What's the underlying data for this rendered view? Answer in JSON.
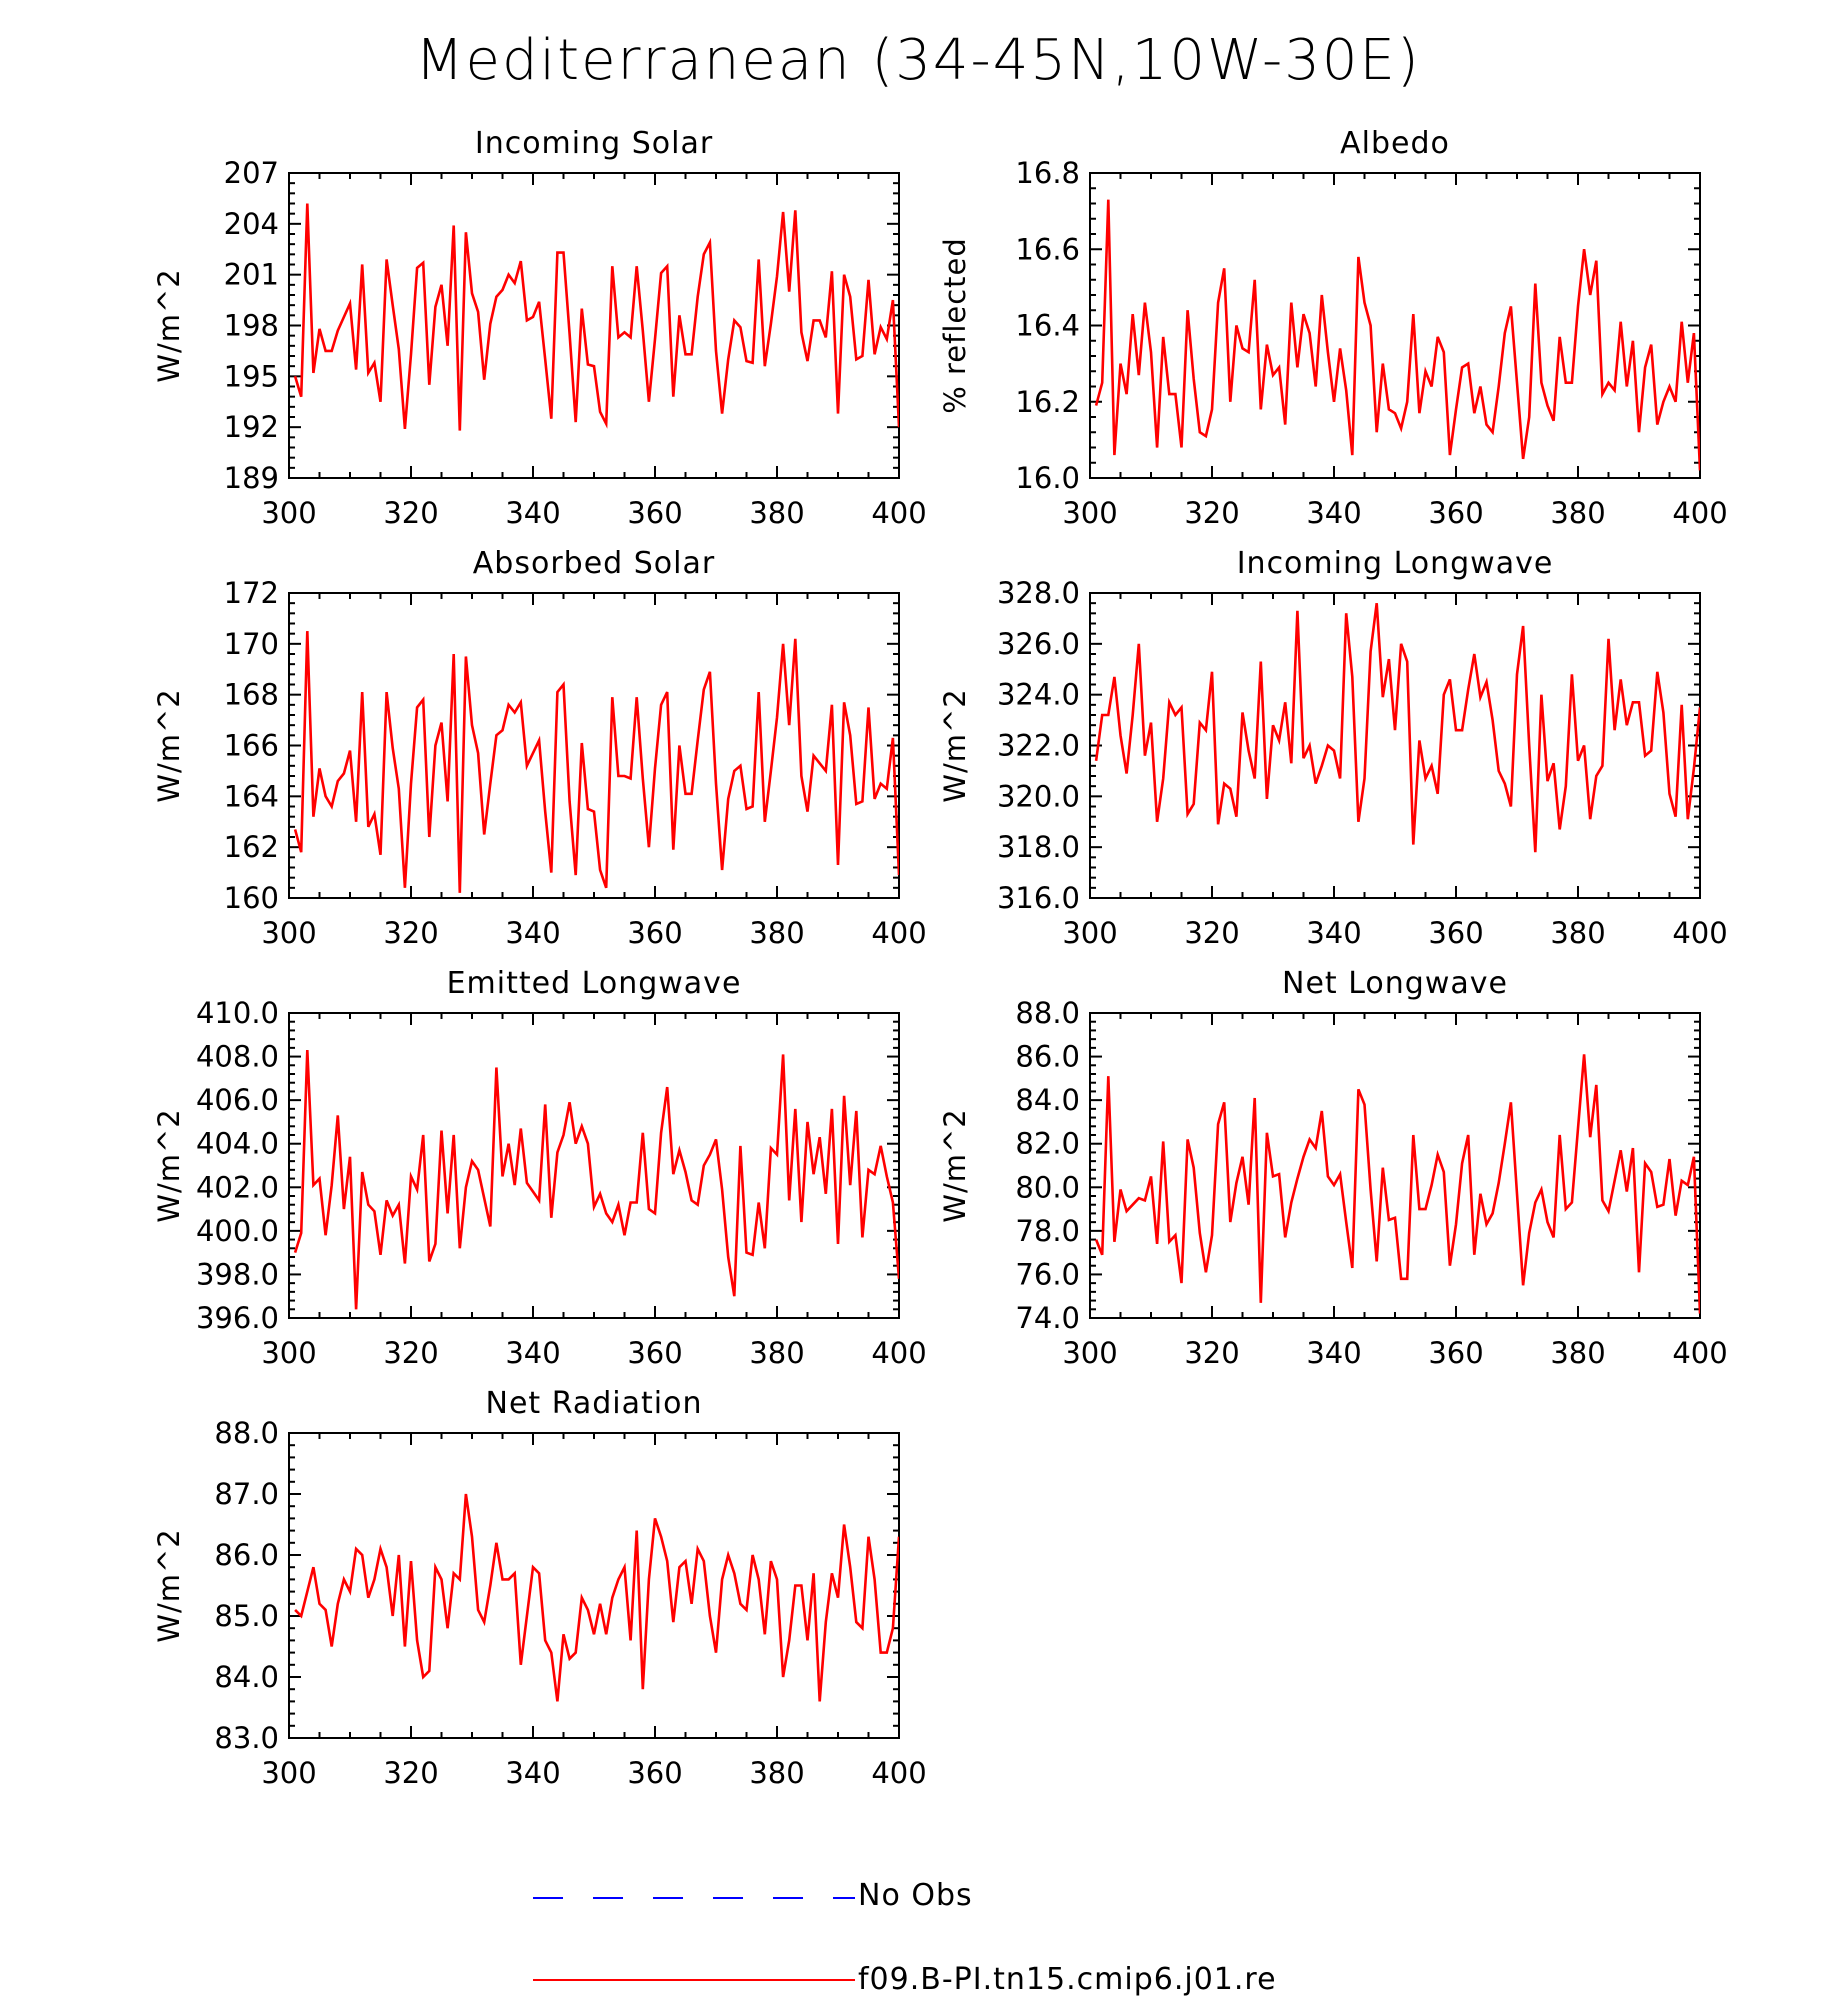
{
  "main_title": "Mediterranean (34-45N,10W-30E)",
  "colors": {
    "model_line": "#ff0000",
    "obs_line": "#0000ff",
    "axis": "#000000"
  },
  "legend": [
    {
      "label": "No Obs",
      "style": "dashed",
      "color": "#0000ff"
    },
    {
      "label": "f09.B-PI.tn15.cmip6.j01.re",
      "style": "solid",
      "color": "#ff0000"
    }
  ],
  "chart_data": [
    {
      "type": "line",
      "title": "Incoming Solar",
      "xlabel": "",
      "ylabel": "W/m^2",
      "xlim": [
        300,
        400
      ],
      "ylim": [
        189,
        207
      ],
      "xticks": [
        300,
        320,
        340,
        360,
        380,
        400
      ],
      "yticks": [
        189,
        192,
        195,
        198,
        201,
        204,
        207
      ],
      "ytick_labels": [
        "189",
        "192",
        "195",
        "198",
        "201",
        "204",
        "207"
      ],
      "x_start": 301,
      "series": [
        {
          "values": [
            195.0,
            193.8,
            205.2,
            195.2,
            197.8,
            196.5,
            196.5,
            197.7,
            198.5,
            199.3,
            195.4,
            201.6,
            195.2,
            195.8,
            193.5,
            201.9,
            199.2,
            196.6,
            191.9,
            196.3,
            201.4,
            201.7,
            194.5,
            199.1,
            200.4,
            196.8,
            203.9,
            191.8,
            203.5,
            199.9,
            198.8,
            194.8,
            198.1,
            199.7,
            200.1,
            201.0,
            200.5,
            201.8,
            198.3,
            198.5,
            199.4,
            196.0,
            192.5,
            202.3,
            202.3,
            197.5,
            192.3,
            199.0,
            195.7,
            195.6,
            192.9,
            192.2,
            201.5,
            197.3,
            197.6,
            197.3,
            201.5,
            197.7,
            193.5,
            197.2,
            201.1,
            201.5,
            193.8,
            198.6,
            196.3,
            196.3,
            199.7,
            202.2,
            202.9,
            196.5,
            192.8,
            196.0,
            198.3,
            197.9,
            195.9,
            195.8,
            201.9,
            195.6,
            198.1,
            200.9,
            204.7,
            200.0,
            204.8,
            197.6,
            195.9,
            198.3,
            198.3,
            197.3,
            201.2,
            192.8,
            201.0,
            199.7,
            196.0,
            196.2,
            200.7,
            196.3,
            197.9,
            197.2,
            199.5,
            192.0
          ]
        }
      ]
    },
    {
      "type": "line",
      "title": "Albedo",
      "xlabel": "",
      "ylabel": "% reflected",
      "xlim": [
        300,
        400
      ],
      "ylim": [
        16.0,
        16.8
      ],
      "xticks": [
        300,
        320,
        340,
        360,
        380,
        400
      ],
      "yticks": [
        16.0,
        16.2,
        16.4,
        16.6,
        16.8
      ],
      "ytick_labels": [
        "16.0",
        "16.2",
        "16.4",
        "16.6",
        "16.8"
      ],
      "x_start": 301,
      "series": [
        {
          "values": [
            16.19,
            16.25,
            16.73,
            16.06,
            16.3,
            16.22,
            16.43,
            16.27,
            16.46,
            16.33,
            16.08,
            16.37,
            16.22,
            16.22,
            16.08,
            16.44,
            16.26,
            16.12,
            16.11,
            16.18,
            16.46,
            16.55,
            16.2,
            16.4,
            16.34,
            16.33,
            16.52,
            16.18,
            16.35,
            16.27,
            16.29,
            16.14,
            16.46,
            16.29,
            16.43,
            16.38,
            16.24,
            16.48,
            16.33,
            16.2,
            16.34,
            16.23,
            16.06,
            16.58,
            16.46,
            16.4,
            16.12,
            16.3,
            16.18,
            16.17,
            16.13,
            16.2,
            16.43,
            16.17,
            16.28,
            16.24,
            16.37,
            16.33,
            16.06,
            16.18,
            16.29,
            16.3,
            16.17,
            16.24,
            16.14,
            16.12,
            16.24,
            16.38,
            16.45,
            16.25,
            16.05,
            16.16,
            16.51,
            16.25,
            16.19,
            16.15,
            16.37,
            16.25,
            16.25,
            16.45,
            16.6,
            16.48,
            16.57,
            16.22,
            16.25,
            16.23,
            16.41,
            16.24,
            16.36,
            16.12,
            16.29,
            16.35,
            16.14,
            16.2,
            16.24,
            16.2,
            16.41,
            16.25,
            16.38,
            16.02
          ]
        }
      ]
    },
    {
      "type": "line",
      "title": "Absorbed Solar",
      "xlabel": "",
      "ylabel": "W/m^2",
      "xlim": [
        300,
        400
      ],
      "ylim": [
        160,
        172
      ],
      "xticks": [
        300,
        320,
        340,
        360,
        380,
        400
      ],
      "yticks": [
        160,
        162,
        164,
        166,
        168,
        170,
        172
      ],
      "ytick_labels": [
        "160",
        "162",
        "164",
        "166",
        "168",
        "170",
        "172"
      ],
      "x_start": 301,
      "series": [
        {
          "values": [
            162.7,
            161.8,
            170.5,
            163.2,
            165.1,
            164.0,
            163.6,
            164.6,
            164.9,
            165.8,
            163.0,
            168.1,
            162.8,
            163.3,
            161.7,
            168.1,
            165.9,
            164.3,
            160.4,
            164.5,
            167.5,
            167.8,
            162.4,
            166.0,
            166.9,
            163.8,
            169.6,
            160.2,
            169.5,
            166.8,
            165.7,
            162.5,
            164.5,
            166.4,
            166.6,
            167.6,
            167.3,
            167.7,
            165.2,
            165.7,
            166.2,
            163.4,
            161.0,
            168.1,
            168.4,
            163.8,
            160.9,
            166.1,
            163.5,
            163.4,
            161.1,
            160.4,
            167.9,
            164.8,
            164.8,
            164.7,
            167.9,
            164.7,
            162.0,
            165.1,
            167.6,
            168.1,
            161.9,
            166.0,
            164.1,
            164.1,
            166.2,
            168.2,
            168.9,
            164.5,
            161.1,
            163.9,
            165.0,
            165.2,
            163.5,
            163.6,
            168.1,
            163.0,
            165.0,
            167.1,
            170.0,
            166.8,
            170.2,
            164.8,
            163.4,
            165.6,
            165.3,
            165.0,
            167.6,
            161.3,
            167.7,
            166.4,
            163.7,
            163.8,
            167.5,
            163.9,
            164.5,
            164.3,
            166.3,
            160.9
          ]
        }
      ]
    },
    {
      "type": "line",
      "title": "Incoming Longwave",
      "xlabel": "",
      "ylabel": "W/m^2",
      "xlim": [
        300,
        400
      ],
      "ylim": [
        316.0,
        328.0
      ],
      "xticks": [
        300,
        320,
        340,
        360,
        380,
        400
      ],
      "yticks": [
        316,
        318,
        320,
        322,
        324,
        326,
        328
      ],
      "ytick_labels": [
        "316.0",
        "318.0",
        "320.0",
        "322.0",
        "324.0",
        "326.0",
        "328.0"
      ],
      "x_start": 301,
      "series": [
        {
          "values": [
            321.4,
            323.2,
            323.2,
            324.7,
            322.4,
            320.9,
            323.2,
            326.0,
            321.6,
            322.9,
            319.0,
            320.7,
            323.7,
            323.2,
            323.5,
            319.3,
            319.7,
            322.9,
            322.6,
            324.9,
            318.9,
            320.5,
            320.3,
            319.2,
            323.3,
            321.8,
            320.7,
            325.3,
            319.9,
            322.8,
            322.2,
            323.7,
            321.3,
            327.3,
            321.5,
            322.0,
            320.5,
            321.2,
            322.0,
            321.8,
            320.7,
            327.2,
            324.7,
            319.0,
            320.7,
            325.7,
            327.6,
            323.9,
            325.4,
            322.6,
            326.0,
            325.3,
            318.1,
            322.2,
            320.7,
            321.2,
            320.1,
            324.0,
            324.6,
            322.6,
            322.6,
            324.2,
            325.6,
            323.9,
            324.5,
            323.0,
            321.0,
            320.5,
            319.6,
            324.8,
            326.7,
            322.0,
            317.8,
            324.0,
            320.6,
            321.3,
            318.7,
            320.4,
            324.8,
            321.4,
            322.0,
            319.1,
            320.8,
            321.2,
            326.2,
            322.6,
            324.6,
            322.8,
            323.7,
            323.7,
            321.6,
            321.8,
            324.9,
            323.3,
            320.1,
            319.2,
            323.6,
            319.1,
            321.1,
            323.5
          ]
        }
      ]
    },
    {
      "type": "line",
      "title": "Emitted Longwave",
      "xlabel": "",
      "ylabel": "W/m^2",
      "xlim": [
        300,
        400
      ],
      "ylim": [
        396.0,
        410.0
      ],
      "xticks": [
        300,
        320,
        340,
        360,
        380,
        400
      ],
      "yticks": [
        396,
        398,
        400,
        402,
        404,
        406,
        408,
        410
      ],
      "ytick_labels": [
        "396.0",
        "398.0",
        "400.0",
        "402.0",
        "404.0",
        "406.0",
        "408.0",
        "410.0"
      ],
      "x_start": 301,
      "series": [
        {
          "values": [
            399.0,
            399.9,
            408.3,
            402.1,
            402.4,
            399.8,
            402.1,
            405.3,
            401.0,
            403.4,
            396.4,
            402.7,
            401.2,
            400.9,
            398.9,
            401.4,
            400.7,
            401.2,
            398.5,
            402.5,
            401.9,
            404.4,
            398.6,
            399.4,
            404.6,
            400.8,
            404.4,
            399.2,
            402.0,
            403.2,
            402.8,
            401.5,
            400.2,
            407.5,
            402.5,
            404.0,
            402.1,
            404.7,
            402.2,
            401.8,
            401.4,
            405.8,
            400.6,
            403.6,
            404.4,
            405.9,
            404.0,
            404.8,
            404.0,
            401.1,
            401.7,
            400.8,
            400.4,
            401.2,
            399.8,
            401.3,
            401.3,
            404.5,
            401.0,
            400.8,
            404.5,
            406.6,
            402.6,
            403.7,
            402.7,
            401.4,
            401.2,
            403.0,
            403.5,
            404.2,
            401.9,
            398.8,
            397.0,
            403.9,
            399.0,
            398.9,
            401.3,
            399.2,
            403.8,
            403.5,
            408.1,
            401.4,
            405.6,
            400.4,
            405.0,
            402.6,
            404.3,
            401.7,
            405.6,
            399.4,
            406.2,
            402.1,
            405.5,
            399.7,
            402.8,
            402.6,
            403.9,
            402.5,
            401.3,
            397.8
          ]
        }
      ]
    },
    {
      "type": "line",
      "title": "Net Longwave",
      "xlabel": "",
      "ylabel": "W/m^2",
      "xlim": [
        300,
        400
      ],
      "ylim": [
        74.0,
        88.0
      ],
      "xticks": [
        300,
        320,
        340,
        360,
        380,
        400
      ],
      "yticks": [
        74,
        76,
        78,
        80,
        82,
        84,
        86,
        88
      ],
      "ytick_labels": [
        "74.0",
        "76.0",
        "78.0",
        "80.0",
        "82.0",
        "84.0",
        "86.0",
        "88.0"
      ],
      "x_start": 301,
      "series": [
        {
          "values": [
            77.6,
            76.9,
            85.1,
            77.5,
            79.9,
            78.9,
            79.2,
            79.5,
            79.4,
            80.5,
            77.4,
            82.1,
            77.5,
            77.8,
            75.6,
            82.2,
            80.9,
            77.9,
            76.1,
            77.8,
            82.9,
            83.9,
            78.4,
            80.2,
            81.4,
            79.2,
            84.1,
            74.7,
            82.5,
            80.5,
            80.6,
            77.7,
            79.3,
            80.4,
            81.4,
            82.2,
            81.8,
            83.5,
            80.5,
            80.1,
            80.6,
            78.4,
            76.3,
            84.5,
            83.8,
            79.9,
            76.6,
            80.9,
            78.5,
            78.6,
            75.8,
            75.8,
            82.4,
            79.0,
            79.0,
            80.1,
            81.5,
            80.7,
            76.4,
            78.3,
            81.1,
            82.4,
            76.9,
            79.7,
            78.3,
            78.8,
            80.2,
            82.0,
            83.9,
            79.7,
            75.5,
            77.9,
            79.3,
            79.9,
            78.4,
            77.7,
            82.4,
            79.0,
            79.3,
            82.7,
            86.1,
            82.3,
            84.7,
            79.4,
            78.9,
            80.3,
            81.7,
            79.8,
            81.8,
            76.1,
            81.1,
            80.7,
            79.1,
            79.2,
            81.3,
            78.7,
            80.3,
            80.1,
            81.4,
            74.2
          ]
        }
      ]
    },
    {
      "type": "line",
      "title": "Net Radiation",
      "xlabel": "",
      "ylabel": "W/m^2",
      "xlim": [
        300,
        400
      ],
      "ylim": [
        83.0,
        88.0
      ],
      "xticks": [
        300,
        320,
        340,
        360,
        380,
        400
      ],
      "yticks": [
        83,
        84,
        85,
        86,
        87,
        88
      ],
      "ytick_labels": [
        "83.0",
        "84.0",
        "85.0",
        "86.0",
        "87.0",
        "88.0"
      ],
      "x_start": 301,
      "series": [
        {
          "values": [
            85.1,
            85.0,
            85.4,
            85.8,
            85.2,
            85.1,
            84.5,
            85.2,
            85.6,
            85.4,
            86.1,
            86.0,
            85.3,
            85.6,
            86.1,
            85.8,
            85.0,
            86.0,
            84.5,
            85.9,
            84.6,
            84.0,
            84.1,
            85.8,
            85.6,
            84.8,
            85.7,
            85.6,
            87.0,
            86.3,
            85.1,
            84.9,
            85.5,
            86.2,
            85.6,
            85.6,
            85.7,
            84.2,
            85.0,
            85.8,
            85.7,
            84.6,
            84.4,
            83.6,
            84.7,
            84.3,
            84.4,
            85.3,
            85.1,
            84.7,
            85.2,
            84.7,
            85.3,
            85.6,
            85.8,
            84.6,
            86.4,
            83.8,
            85.6,
            86.6,
            86.3,
            85.9,
            84.9,
            85.8,
            85.9,
            85.2,
            86.1,
            85.9,
            85.0,
            84.4,
            85.6,
            86.0,
            85.7,
            85.2,
            85.1,
            86.0,
            85.6,
            84.7,
            85.9,
            85.6,
            84.0,
            84.6,
            85.5,
            85.5,
            84.6,
            85.7,
            83.6,
            84.9,
            85.7,
            85.3,
            86.5,
            85.8,
            84.9,
            84.8,
            86.3,
            85.6,
            84.4,
            84.4,
            84.8,
            86.3
          ]
        }
      ]
    }
  ]
}
